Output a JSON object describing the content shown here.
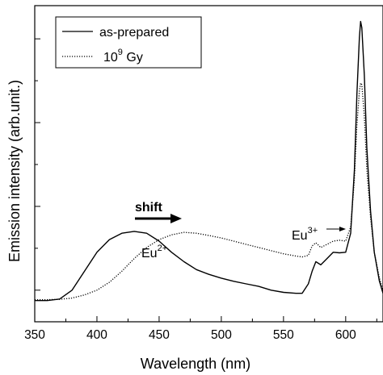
{
  "chart_data": {
    "type": "line",
    "xlabel": "Wavelength (nm)",
    "ylabel": "Emission intensity (arb.unit.)",
    "xlim": [
      350,
      630
    ],
    "ylim": [
      0,
      1
    ],
    "x_ticks": [
      "350",
      "400",
      "450",
      "500",
      "550",
      "600"
    ],
    "y_ticks_labeled": false,
    "grid": false,
    "legend_position": "top-left",
    "series": [
      {
        "name": "as-prepared",
        "style": "solid",
        "color": "#000000",
        "points": [
          [
            350,
            0.067
          ],
          [
            360,
            0.067
          ],
          [
            370,
            0.072
          ],
          [
            380,
            0.1
          ],
          [
            390,
            0.16
          ],
          [
            400,
            0.22
          ],
          [
            410,
            0.26
          ],
          [
            420,
            0.28
          ],
          [
            430,
            0.286
          ],
          [
            440,
            0.28
          ],
          [
            450,
            0.255
          ],
          [
            460,
            0.22
          ],
          [
            470,
            0.19
          ],
          [
            480,
            0.165
          ],
          [
            490,
            0.15
          ],
          [
            500,
            0.138
          ],
          [
            510,
            0.128
          ],
          [
            520,
            0.12
          ],
          [
            530,
            0.112
          ],
          [
            540,
            0.1
          ],
          [
            550,
            0.093
          ],
          [
            560,
            0.09
          ],
          [
            565,
            0.09
          ],
          [
            570,
            0.12
          ],
          [
            573,
            0.16
          ],
          [
            576,
            0.19
          ],
          [
            580,
            0.18
          ],
          [
            585,
            0.2
          ],
          [
            590,
            0.22
          ],
          [
            595,
            0.218
          ],
          [
            600,
            0.22
          ],
          [
            604,
            0.28
          ],
          [
            607,
            0.48
          ],
          [
            609,
            0.72
          ],
          [
            611,
            0.9
          ],
          [
            612,
            0.95
          ],
          [
            613,
            0.93
          ],
          [
            615,
            0.78
          ],
          [
            617,
            0.55
          ],
          [
            620,
            0.35
          ],
          [
            623,
            0.22
          ],
          [
            627,
            0.13
          ],
          [
            630,
            0.09
          ]
        ]
      },
      {
        "name": "10⁹ Gy",
        "name_base": "10",
        "name_sup": "9",
        "name_rest": " Gy",
        "style": "dotted",
        "color": "#000000",
        "points": [
          [
            350,
            0.07
          ],
          [
            360,
            0.07
          ],
          [
            370,
            0.071
          ],
          [
            380,
            0.075
          ],
          [
            390,
            0.085
          ],
          [
            400,
            0.1
          ],
          [
            410,
            0.125
          ],
          [
            420,
            0.16
          ],
          [
            430,
            0.2
          ],
          [
            440,
            0.235
          ],
          [
            450,
            0.26
          ],
          [
            460,
            0.275
          ],
          [
            470,
            0.283
          ],
          [
            480,
            0.28
          ],
          [
            490,
            0.273
          ],
          [
            500,
            0.265
          ],
          [
            510,
            0.255
          ],
          [
            520,
            0.245
          ],
          [
            530,
            0.235
          ],
          [
            540,
            0.225
          ],
          [
            550,
            0.215
          ],
          [
            560,
            0.208
          ],
          [
            565,
            0.205
          ],
          [
            570,
            0.21
          ],
          [
            573,
            0.24
          ],
          [
            576,
            0.25
          ],
          [
            580,
            0.235
          ],
          [
            585,
            0.245
          ],
          [
            590,
            0.255
          ],
          [
            595,
            0.258
          ],
          [
            600,
            0.255
          ],
          [
            604,
            0.3
          ],
          [
            607,
            0.45
          ],
          [
            609,
            0.62
          ],
          [
            611,
            0.73
          ],
          [
            612,
            0.755
          ],
          [
            613,
            0.75
          ],
          [
            615,
            0.65
          ],
          [
            617,
            0.48
          ],
          [
            620,
            0.33
          ],
          [
            623,
            0.22
          ],
          [
            627,
            0.14
          ],
          [
            630,
            0.1
          ]
        ]
      }
    ],
    "annotations": [
      {
        "id": "shift",
        "text": "shift",
        "bold": true,
        "arrow": "right"
      },
      {
        "id": "eu2",
        "base": "Eu",
        "sup": "2+"
      },
      {
        "id": "eu3",
        "base": "Eu",
        "sup": "3+",
        "arrow": "right"
      }
    ]
  }
}
